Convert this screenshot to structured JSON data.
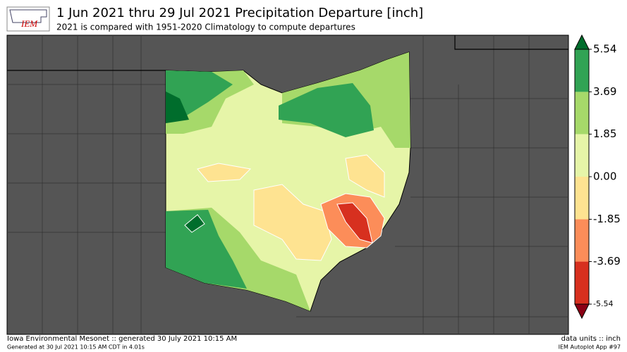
{
  "header": {
    "title": "1 Jun 2021 thru 29 Jul 2021 Precipitation Departure [inch]",
    "subtitle": "2021 is compared with 1951-2020 Climatology to compute departures",
    "logo": "IEM"
  },
  "colorbar": {
    "ticks": [
      -5.54,
      -3.69,
      -1.85,
      {
        "value": 0,
        "label": "0.00"
      },
      1.85,
      3.69,
      5.54
    ],
    "colors": [
      "#d7301f",
      "#fc8d59",
      "#fee391",
      "#e6f5a8",
      "#a6d96a",
      "#31a354"
    ],
    "under_color": "#8b0015",
    "over_color": "#006d2c"
  },
  "footer": {
    "left": "Iowa Environmental Mesonet :: generated 30 July 2021 10:15 AM",
    "left_small": "Generated at 30 Jul 2021 10:15 AM CDT in 4.01s",
    "right": "data units :: inch",
    "right_small": "IEM Autoplot App #97"
  }
}
